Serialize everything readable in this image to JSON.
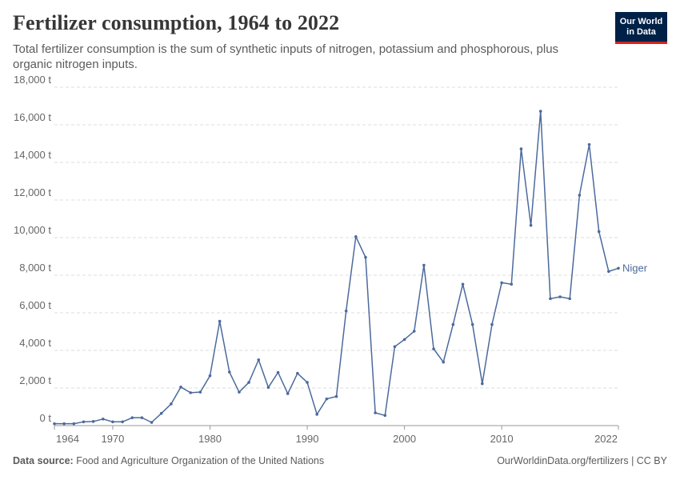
{
  "header": {
    "title": "Fertilizer consumption, 1964 to 2022",
    "subtitle": "Total fertilizer consumption is the sum of synthetic inputs of nitrogen, potassium and phosphorous, plus organic nitrogen inputs."
  },
  "logo": {
    "line1": "Our World",
    "line2": "in Data"
  },
  "footer": {
    "source_label": "Data source:",
    "source_text": "Food and Agriculture Organization of the United Nations",
    "credit": "OurWorldinData.org/fertilizers | CC BY"
  },
  "colors": {
    "series": "#4c6a9c",
    "grid": "#dddddd",
    "axis": "#666666",
    "logo_bg": "#002147",
    "logo_accent": "#ce261e"
  },
  "chart_data": {
    "type": "line",
    "title": "Fertilizer consumption, 1964 to 2022",
    "xlim": [
      1964,
      2022
    ],
    "ylim": [
      0,
      18000
    ],
    "y_ticks": [
      0,
      2000,
      4000,
      6000,
      8000,
      10000,
      12000,
      14000,
      16000,
      18000
    ],
    "y_tick_labels": [
      "0 t",
      "2,000 t",
      "4,000 t",
      "6,000 t",
      "8,000 t",
      "10,000 t",
      "12,000 t",
      "14,000 t",
      "16,000 t",
      "18,000 t"
    ],
    "x_ticks": [
      1964,
      1970,
      1980,
      1990,
      2000,
      2010,
      2022
    ],
    "x_tick_labels": [
      "1964",
      "1970",
      "1980",
      "1990",
      "2000",
      "2010",
      "2022"
    ],
    "grid": "horizontal dashed",
    "series": [
      {
        "name": "Niger",
        "x": [
          1964,
          1965,
          1966,
          1967,
          1968,
          1969,
          1970,
          1971,
          1972,
          1973,
          1974,
          1975,
          1976,
          1977,
          1978,
          1979,
          1980,
          1981,
          1982,
          1983,
          1984,
          1985,
          1986,
          1987,
          1988,
          1989,
          1990,
          1991,
          1992,
          1993,
          1994,
          1995,
          1996,
          1997,
          1998,
          1999,
          2000,
          2001,
          2002,
          2003,
          2004,
          2005,
          2006,
          2007,
          2008,
          2009,
          2010,
          2011,
          2012,
          2013,
          2014,
          2015,
          2016,
          2017,
          2018,
          2019,
          2020,
          2021,
          2022
        ],
        "values": [
          100,
          100,
          100,
          200,
          220,
          350,
          200,
          200,
          420,
          420,
          170,
          650,
          1150,
          2050,
          1750,
          1780,
          2650,
          5550,
          2850,
          1780,
          2300,
          3500,
          2030,
          2830,
          1700,
          2780,
          2300,
          600,
          1420,
          1550,
          6100,
          10050,
          8950,
          680,
          540,
          4200,
          4580,
          5020,
          8530,
          4080,
          3380,
          5380,
          7520,
          5380,
          2230,
          5380,
          7600,
          7520,
          14720,
          10650,
          16720,
          6750,
          6850,
          6750,
          12260,
          14950,
          10320,
          8200,
          8370
        ]
      }
    ]
  }
}
